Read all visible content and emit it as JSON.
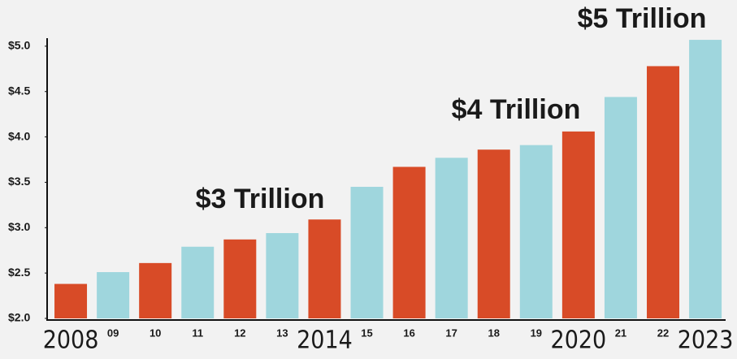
{
  "chart_data": {
    "type": "bar",
    "categories": [
      "2008",
      "09",
      "10",
      "11",
      "12",
      "13",
      "2014",
      "15",
      "16",
      "17",
      "18",
      "19",
      "2020",
      "21",
      "22",
      "2023"
    ],
    "values": [
      2.38,
      2.51,
      2.61,
      2.79,
      2.87,
      2.94,
      3.09,
      3.45,
      3.67,
      3.77,
      3.86,
      3.91,
      4.06,
      4.44,
      4.78,
      5.07
    ],
    "colors": [
      "#d84b27",
      "#9fd6dd",
      "#d84b27",
      "#9fd6dd",
      "#d84b27",
      "#9fd6dd",
      "#d84b27",
      "#9fd6dd",
      "#d84b27",
      "#9fd6dd",
      "#d84b27",
      "#9fd6dd",
      "#d84b27",
      "#9fd6dd",
      "#d84b27",
      "#9fd6dd"
    ],
    "ylim": [
      2.0,
      5.1
    ],
    "yticks": [
      {
        "value": 2.0,
        "label": "$2.0"
      },
      {
        "value": 2.5,
        "label": "$2.5"
      },
      {
        "value": 3.0,
        "label": "$3.0"
      },
      {
        "value": 3.5,
        "label": "$3.5"
      },
      {
        "value": 4.0,
        "label": "$4.0"
      },
      {
        "value": 4.5,
        "label": "$4.5"
      },
      {
        "value": 5.0,
        "label": "$5.0"
      }
    ],
    "annotations": [
      "$3 Trillion",
      "$4 Trillion",
      "$5 Trillion"
    ],
    "grid": false
  }
}
